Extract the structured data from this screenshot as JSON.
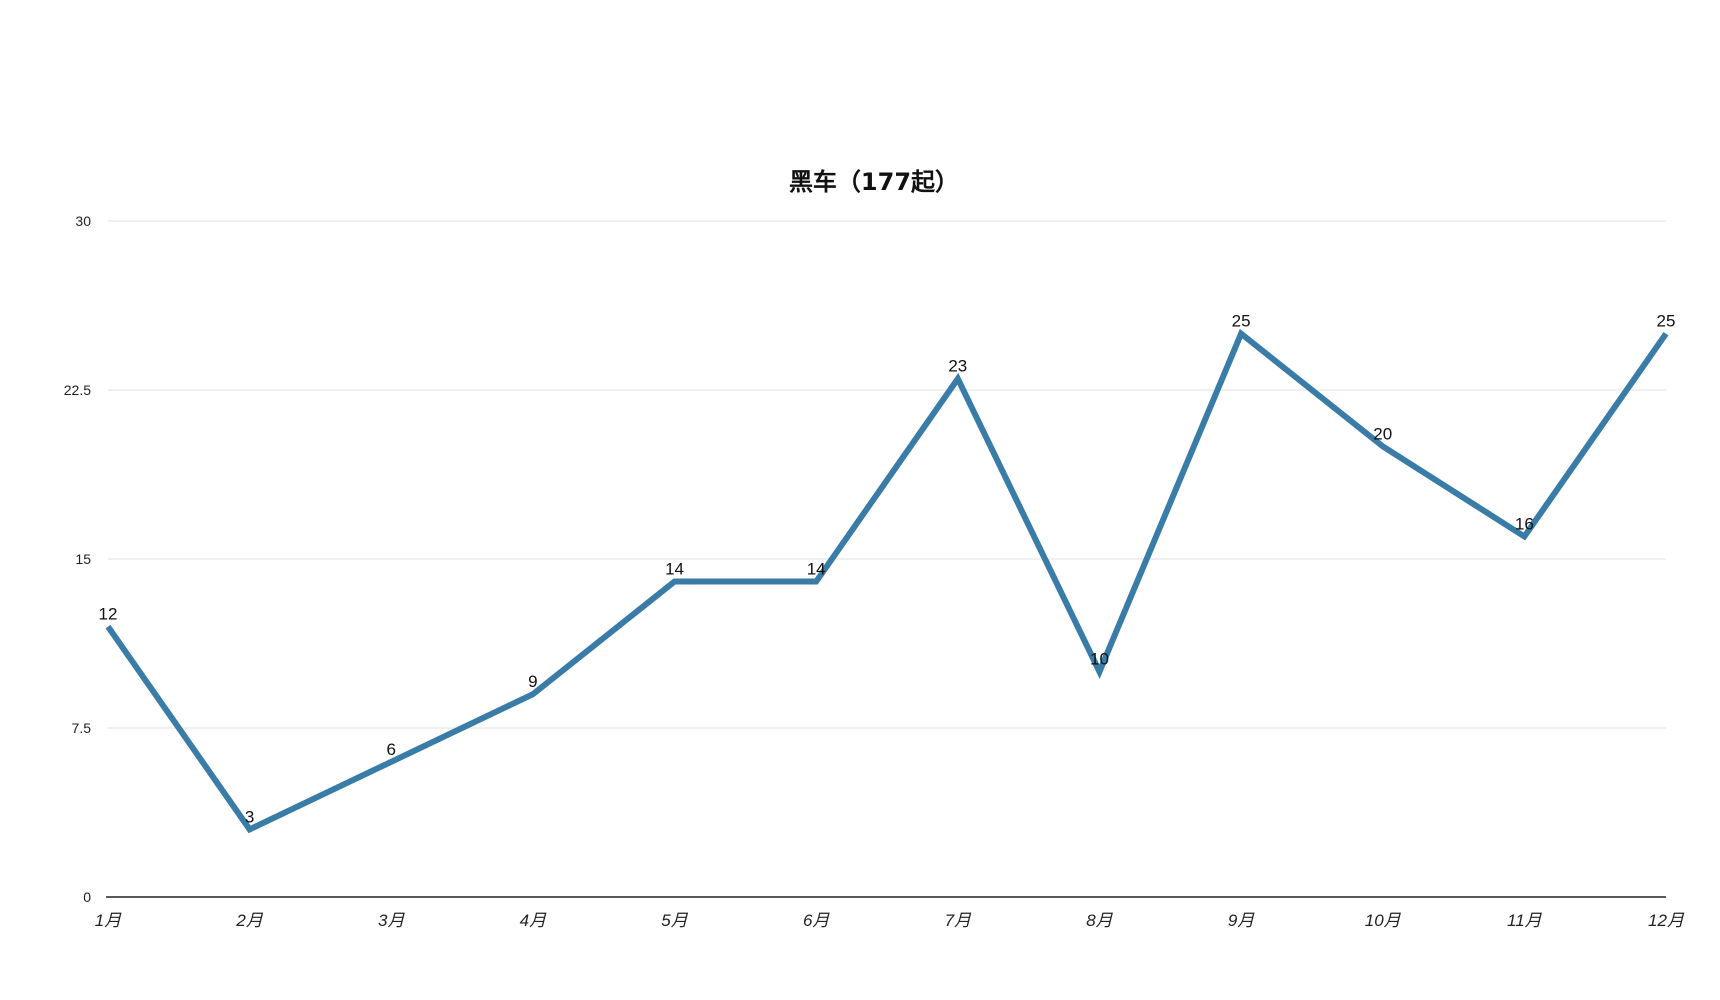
{
  "chart_data": {
    "type": "line",
    "title": "黑车（177起）",
    "xlabel": "",
    "ylabel": "",
    "categories": [
      "1月",
      "2月",
      "3月",
      "4月",
      "5月",
      "6月",
      "7月",
      "8月",
      "9月",
      "10月",
      "11月",
      "12月"
    ],
    "series": [
      {
        "values": [
          12,
          3,
          6,
          9,
          14,
          14,
          23,
          10,
          25,
          20,
          16,
          25
        ]
      }
    ],
    "ylim": [
      0,
      30
    ],
    "yticks": [
      "0",
      "7.5",
      "15",
      "22.5",
      "30"
    ],
    "grid": true,
    "legend": "none",
    "line_color": "#3a7ca8",
    "data_labels": true
  }
}
